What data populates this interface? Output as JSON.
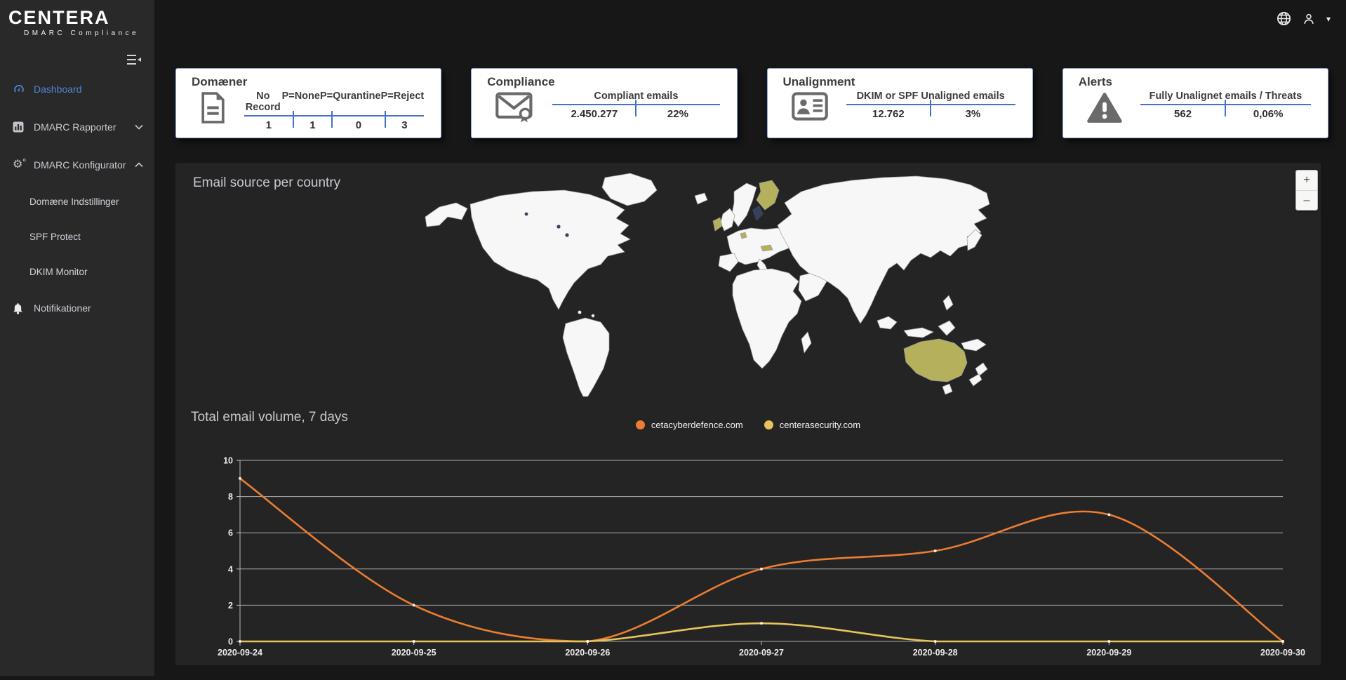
{
  "brand": {
    "name": "CENTERA",
    "tagline": "DMARC Compliance"
  },
  "topbar": {
    "icons": [
      "globe-icon",
      "user-icon",
      "caret-down-icon"
    ]
  },
  "sidebar": {
    "menu_toggle_icon": "collapse-menu-icon",
    "items": [
      {
        "label": "Dashboard",
        "icon": "gauge-icon",
        "active": true
      },
      {
        "label": "DMARC Rapporter",
        "icon": "bar-chart-icon",
        "chevron": "down"
      },
      {
        "label": "DMARC Konfigurator",
        "icon": "gears-icon",
        "chevron": "up",
        "expanded": true
      },
      {
        "label": "Domæne Indstillinger",
        "sub": true
      },
      {
        "label": "SPF Protect",
        "sub": true
      },
      {
        "label": "DKIM Monitor",
        "sub": true
      },
      {
        "label": "Notifikationer",
        "icon": "bell-icon"
      }
    ]
  },
  "cards": [
    {
      "title": "Domæner",
      "icon": "document-icon",
      "columns": [
        "No Record",
        "P=None",
        "P=Qurantine",
        "P=Reject"
      ],
      "values": [
        "1",
        "1",
        "0",
        "3"
      ]
    },
    {
      "title": "Compliance",
      "icon": "certified-mail-icon",
      "header": "Compliant emails",
      "values": [
        "2.450.277",
        "22%"
      ]
    },
    {
      "title": "Unalignment",
      "icon": "id-card-icon",
      "header": "DKIM or SPF Unaligned emails",
      "values": [
        "12.762",
        "3%"
      ]
    },
    {
      "title": "Alerts",
      "icon": "warning-triangle-icon",
      "header": "Fully Unalignet emails / Threats",
      "values": [
        "562",
        "0,06%"
      ]
    }
  ],
  "map": {
    "title": "Email source per country",
    "zoom_in_label": "+",
    "zoom_out_label": "–",
    "land_color": "#f7f7f7",
    "highlight_color": "#b4b05c",
    "water_color": "#36415c",
    "highlighted_countries": [
      "Finland",
      "Ireland",
      "Netherlands",
      "Austria",
      "Australia"
    ]
  },
  "chart_data": {
    "type": "line",
    "title": "Total email volume, 7 days",
    "x": [
      "2020-09-24",
      "2020-09-25",
      "2020-09-26",
      "2020-09-27",
      "2020-09-28",
      "2020-09-29",
      "2020-09-30"
    ],
    "series": [
      {
        "name": "cetacyberdefence.com",
        "color": "#ed7d31",
        "values": [
          9,
          2,
          0,
          4,
          5,
          7,
          0
        ]
      },
      {
        "name": "centerasecurity.com",
        "color": "#e6c35c",
        "values": [
          0,
          0,
          0,
          1,
          0,
          0,
          0
        ]
      }
    ],
    "ylim": [
      0,
      10
    ],
    "yticks": [
      0,
      2,
      4,
      6,
      8,
      10
    ],
    "grid": true,
    "legend_position": "top-center"
  }
}
